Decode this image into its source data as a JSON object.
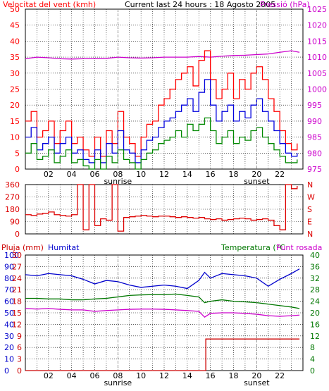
{
  "colors": {
    "wind": "#ff0000",
    "gust_blue": "#0000dd",
    "gust_green": "#008800",
    "pressure": "#cc00cc",
    "direction": "#dd0000",
    "humidity": "#0000cc",
    "temperature": "#007700",
    "dewpoint": "#cc00cc",
    "rain": "#cc0000",
    "grid": "#000000",
    "frame": "#000000"
  },
  "header": {
    "wind_title": "Velocitat del vent (kmh)",
    "current": "Current last 24 hours : 18 Agosto 2005",
    "pressure_title": "Pressió (hPa)"
  },
  "bottom_labels": {
    "pluja": "Pluja (mm)",
    "humitat": "Humitat",
    "temperatura": "Temperatura (°C",
    "punt_rosada": "Punt rosada"
  },
  "x_ticks": [
    "02",
    "04",
    "06",
    "08",
    "10",
    "12",
    "14",
    "16",
    "18",
    "20",
    "22"
  ],
  "x_tick_hours": [
    2,
    4,
    6,
    8,
    10,
    12,
    14,
    16,
    18,
    20,
    22
  ],
  "sunrise": {
    "label": "sunrise",
    "hour": 8
  },
  "sunset": {
    "label": "sunset",
    "hour": 20
  },
  "chart_data": [
    {
      "type": "line",
      "name_panel": "wind_pressure",
      "x_range": [
        0,
        24
      ],
      "y_left": {
        "ticks": [
          "0",
          "5",
          "10",
          "15",
          "20",
          "25",
          "30",
          "35",
          "40",
          "45",
          "50"
        ],
        "range": [
          0,
          50
        ]
      },
      "y_right": {
        "ticks": [
          "975",
          "980",
          "985",
          "990",
          "995",
          "1000",
          "1005",
          "1010",
          "1015",
          "1020",
          "1025"
        ],
        "range": [
          975,
          1025
        ]
      },
      "series": [
        {
          "key": "pressure",
          "x": [
            0,
            1,
            2,
            3,
            4,
            5,
            6,
            7,
            8,
            9,
            10,
            11,
            12,
            13,
            14,
            15,
            16,
            17,
            18,
            19,
            20,
            21,
            22,
            23,
            23.7
          ],
          "values": [
            1009.5,
            1010,
            1009.8,
            1009.5,
            1009.4,
            1009.5,
            1009.5,
            1009.6,
            1010,
            1009.8,
            1009.7,
            1009.8,
            1010,
            1010,
            1010,
            1010.2,
            1010,
            1010.3,
            1010.5,
            1010.6,
            1010.8,
            1011,
            1011.5,
            1012,
            1011.5
          ]
        },
        {
          "key": "wind",
          "x": [
            0,
            0.5,
            1,
            1.5,
            2,
            2.5,
            3,
            3.5,
            4,
            4.5,
            5,
            5.5,
            6,
            6.5,
            7,
            7.5,
            8,
            8.5,
            9,
            9.5,
            10,
            10.5,
            11,
            11.5,
            12,
            12.5,
            13,
            13.5,
            14,
            14.5,
            15,
            15.5,
            16,
            16.5,
            17,
            17.5,
            18,
            18.5,
            19,
            19.5,
            20,
            20.5,
            21,
            21.5,
            22,
            22.5,
            23,
            23.5
          ],
          "values": [
            15,
            18,
            10,
            12,
            15,
            8,
            12,
            15,
            8,
            10,
            6,
            4,
            10,
            4,
            12,
            8,
            18,
            10,
            8,
            4,
            10,
            14,
            15,
            20,
            22,
            25,
            28,
            30,
            32,
            26,
            34,
            37,
            28,
            22,
            25,
            30,
            22,
            28,
            25,
            30,
            32,
            28,
            22,
            18,
            12,
            8,
            6,
            8
          ]
        },
        {
          "key": "gust_blue",
          "x": [
            0,
            0.5,
            1,
            1.5,
            2,
            2.5,
            3,
            3.5,
            4,
            4.5,
            5,
            5.5,
            6,
            6.5,
            7,
            7.5,
            8,
            8.5,
            9,
            9.5,
            10,
            10.5,
            11,
            11.5,
            12,
            12.5,
            13,
            13.5,
            14,
            14.5,
            15,
            15.5,
            16,
            16.5,
            17,
            17.5,
            18,
            18.5,
            19,
            19.5,
            20,
            20.5,
            21,
            21.5,
            22,
            22.5,
            23,
            23.5
          ],
          "values": [
            10,
            13,
            6,
            8,
            10,
            5,
            8,
            10,
            5,
            6,
            3,
            2,
            6,
            2,
            8,
            5,
            12,
            6,
            5,
            2,
            6,
            9,
            10,
            13,
            15,
            16,
            18,
            20,
            22,
            18,
            24,
            28,
            20,
            15,
            18,
            20,
            15,
            18,
            16,
            20,
            22,
            18,
            15,
            12,
            8,
            5,
            4,
            5
          ]
        },
        {
          "key": "gust_green",
          "x": [
            0,
            0.5,
            1,
            1.5,
            2,
            2.5,
            3,
            3.5,
            4,
            4.5,
            5,
            5.5,
            6,
            6.5,
            7,
            7.5,
            8,
            8.5,
            9,
            9.5,
            10,
            10.5,
            11,
            11.5,
            12,
            12.5,
            13,
            13.5,
            14,
            14.5,
            15,
            15.5,
            16,
            16.5,
            17,
            17.5,
            18,
            18.5,
            19,
            19.5,
            20,
            20.5,
            21,
            21.5,
            22,
            22.5,
            23,
            23.5
          ],
          "values": [
            5,
            8,
            3,
            4,
            6,
            2,
            4,
            6,
            2,
            3,
            1,
            0,
            3,
            0,
            4,
            2,
            6,
            3,
            2,
            0,
            3,
            5,
            6,
            8,
            9,
            10,
            12,
            10,
            14,
            12,
            14,
            16,
            12,
            8,
            10,
            12,
            8,
            10,
            9,
            12,
            13,
            10,
            8,
            6,
            4,
            2,
            2,
            3
          ]
        }
      ]
    },
    {
      "type": "line",
      "name_panel": "wind_direction",
      "x_range": [
        0,
        24
      ],
      "y_left": {
        "ticks": [
          "0",
          "90",
          "180",
          "270",
          "360"
        ],
        "range": [
          0,
          360
        ]
      },
      "y_right": {
        "ticks": [
          "N",
          "E",
          "S",
          "W",
          "N"
        ]
      },
      "series": [
        {
          "key": "direction",
          "x": [
            0,
            0.5,
            1,
            1.5,
            2,
            2.5,
            3,
            3.5,
            4,
            4.5,
            5,
            5.5,
            6,
            6.5,
            7,
            7.5,
            8,
            8.5,
            9,
            9.5,
            10,
            10.5,
            11,
            11.5,
            12,
            12.5,
            13,
            13.5,
            14,
            14.5,
            15,
            15.5,
            16,
            16.5,
            17,
            17.5,
            18,
            18.5,
            19,
            19.5,
            20,
            20.5,
            21,
            21.5,
            22,
            22.5,
            23,
            23.5
          ],
          "values": [
            140,
            135,
            145,
            150,
            160,
            140,
            135,
            130,
            140,
            360,
            30,
            360,
            60,
            110,
            100,
            360,
            20,
            120,
            125,
            130,
            135,
            130,
            125,
            130,
            130,
            125,
            120,
            125,
            120,
            115,
            120,
            110,
            105,
            110,
            100,
            105,
            110,
            115,
            110,
            100,
            105,
            110,
            100,
            60,
            30,
            360,
            330,
            350
          ]
        }
      ]
    },
    {
      "type": "line",
      "name_panel": "humidity_temperature_rain",
      "x_range": [
        0,
        24
      ],
      "y_left_outer": {
        "label": "Pluja (mm)",
        "ticks": [
          "0",
          "10",
          "20",
          "30",
          "40",
          "50",
          "60",
          "70",
          "80",
          "90",
          "100"
        ],
        "range": [
          0,
          100
        ]
      },
      "y_left_inner": {
        "ticks": [
          "0",
          "3",
          "6",
          "9",
          "12",
          "15",
          "18",
          "21",
          "24",
          "27",
          "30"
        ],
        "range": [
          0,
          30
        ]
      },
      "y_right": {
        "ticks": [
          "0",
          "4",
          "8",
          "12",
          "16",
          "20",
          "24",
          "28",
          "32",
          "36",
          "40"
        ],
        "range": [
          0,
          40
        ]
      },
      "series": [
        {
          "key": "humidity",
          "x": [
            0,
            1,
            2,
            3,
            4,
            5,
            6,
            7,
            8,
            9,
            10,
            11,
            12,
            13,
            14,
            15,
            15.5,
            16,
            17,
            18,
            19,
            20,
            21,
            22,
            23,
            23.7
          ],
          "values": [
            83,
            82,
            84,
            83,
            82,
            79,
            75,
            78,
            77,
            74,
            72,
            73,
            74,
            73,
            71,
            78,
            85,
            80,
            84,
            83,
            82,
            80,
            73,
            79,
            84,
            88
          ]
        },
        {
          "key": "temperature",
          "x": [
            0,
            1,
            2,
            3,
            4,
            5,
            6,
            7,
            8,
            9,
            10,
            11,
            12,
            13,
            14,
            15,
            15.5,
            16,
            17,
            18,
            19,
            20,
            21,
            22,
            23,
            23.7
          ],
          "values": [
            25,
            25,
            24.8,
            24.8,
            24.5,
            24.5,
            24.8,
            25,
            25.5,
            26,
            26.2,
            26.3,
            26.3,
            26.5,
            26,
            25.5,
            23.5,
            24,
            24.5,
            24,
            23.8,
            23.5,
            23,
            22.5,
            22,
            21.5
          ]
        },
        {
          "key": "dewpoint",
          "x": [
            0,
            1,
            2,
            3,
            4,
            5,
            6,
            7,
            8,
            9,
            10,
            11,
            12,
            13,
            14,
            15,
            15.5,
            16,
            17,
            18,
            19,
            20,
            21,
            22,
            23,
            23.7
          ],
          "values": [
            21.5,
            21.3,
            21.5,
            21.2,
            21,
            21,
            20.5,
            20.8,
            21,
            21.2,
            21.3,
            21.3,
            21.2,
            21,
            20.8,
            20.5,
            18.5,
            19.8,
            20,
            20,
            19.8,
            19.5,
            19,
            18.8,
            19,
            19.2
          ]
        },
        {
          "key": "rain",
          "x": [
            0,
            15.5,
            15.6,
            23.7
          ],
          "values": [
            0,
            0,
            8.2,
            8.2
          ]
        }
      ]
    }
  ]
}
